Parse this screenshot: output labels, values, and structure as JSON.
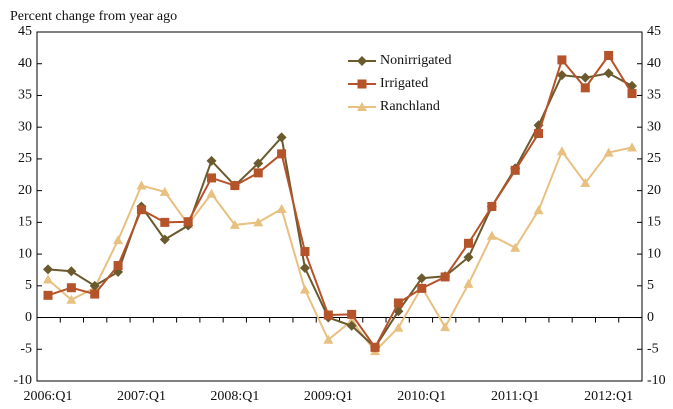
{
  "chart_data": {
    "type": "line",
    "y_label": "Percent change from year ago",
    "categories": [
      "2006:Q1",
      null,
      null,
      null,
      "2007:Q1",
      null,
      null,
      null,
      "2008:Q1",
      null,
      null,
      null,
      "2009:Q1",
      null,
      null,
      null,
      "2010:Q1",
      null,
      null,
      null,
      "2011:Q1",
      null,
      null,
      null,
      "2012:Q1",
      null
    ],
    "series": [
      {
        "name": "Nonirrigated",
        "color": "#6b5a2e",
        "marker": "diamond",
        "values": [
          7.6,
          7.3,
          5.0,
          7.2,
          17.5,
          12.3,
          14.5,
          24.7,
          20.8,
          24.3,
          28.4,
          7.8,
          0.0,
          -1.3,
          -4.7,
          1.0,
          6.2,
          6.5,
          9.5,
          17.5,
          23.5,
          30.3,
          38.2,
          37.8,
          38.5,
          36.5
        ]
      },
      {
        "name": "Irrigated",
        "color": "#b5532a",
        "marker": "square",
        "values": [
          3.5,
          4.7,
          3.7,
          8.2,
          17.0,
          15.0,
          15.1,
          22.0,
          20.8,
          22.8,
          25.8,
          10.4,
          0.4,
          0.5,
          -4.7,
          2.3,
          4.6,
          6.4,
          11.7,
          17.5,
          23.2,
          29.0,
          40.6,
          36.2,
          41.3,
          35.3
        ]
      },
      {
        "name": "Ranchland",
        "color": "#e8c080",
        "marker": "triangle",
        "values": [
          6.0,
          2.8,
          4.7,
          12.2,
          20.8,
          19.8,
          14.7,
          19.5,
          14.6,
          15.0,
          17.1,
          4.4,
          -3.5,
          -0.5,
          -5.3,
          -1.6,
          4.8,
          -1.5,
          5.3,
          12.9,
          11.0,
          16.9,
          26.2,
          21.2,
          26.0,
          26.8
        ]
      }
    ],
    "ylim": [
      -10,
      45
    ],
    "yticks": [
      -10,
      -5,
      0,
      5,
      10,
      15,
      20,
      25,
      30,
      35,
      40,
      45
    ],
    "y2lim": [
      -10,
      45
    ],
    "y2ticks": [
      -10,
      -5,
      0,
      5,
      10,
      15,
      20,
      25,
      30,
      35,
      40,
      45
    ],
    "legend": "top-right"
  }
}
